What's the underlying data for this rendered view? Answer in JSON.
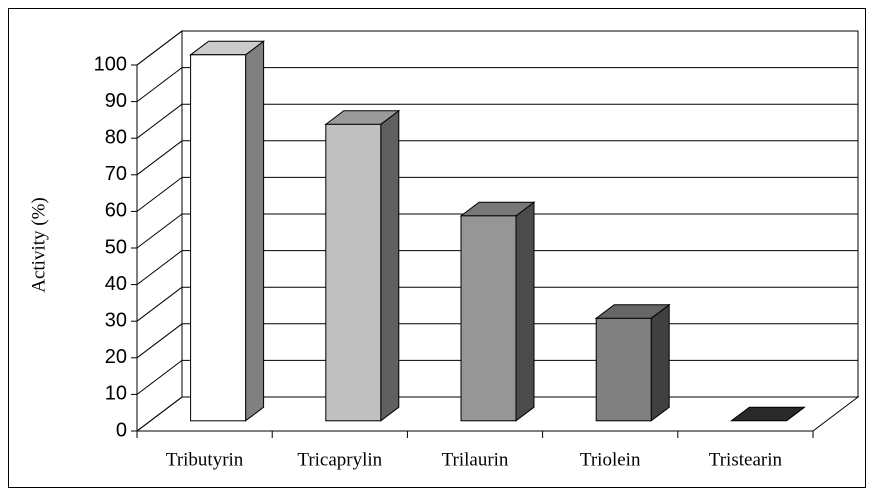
{
  "chart_data": {
    "type": "bar3d",
    "y_label": "Activity (%)",
    "categories": [
      "Tributyrin",
      "Tricaprylin",
      "Trilaurin",
      "Triolein",
      "Tristearin"
    ],
    "values": [
      100,
      81,
      56,
      28,
      0
    ],
    "colors": [
      "#ffffff",
      "#c0c0c0",
      "#969696",
      "#808080",
      "#333333"
    ],
    "ylim": [
      0,
      100
    ],
    "yticks": [
      0,
      10,
      20,
      30,
      40,
      50,
      60,
      70,
      80,
      90,
      100
    ],
    "grid": true
  }
}
